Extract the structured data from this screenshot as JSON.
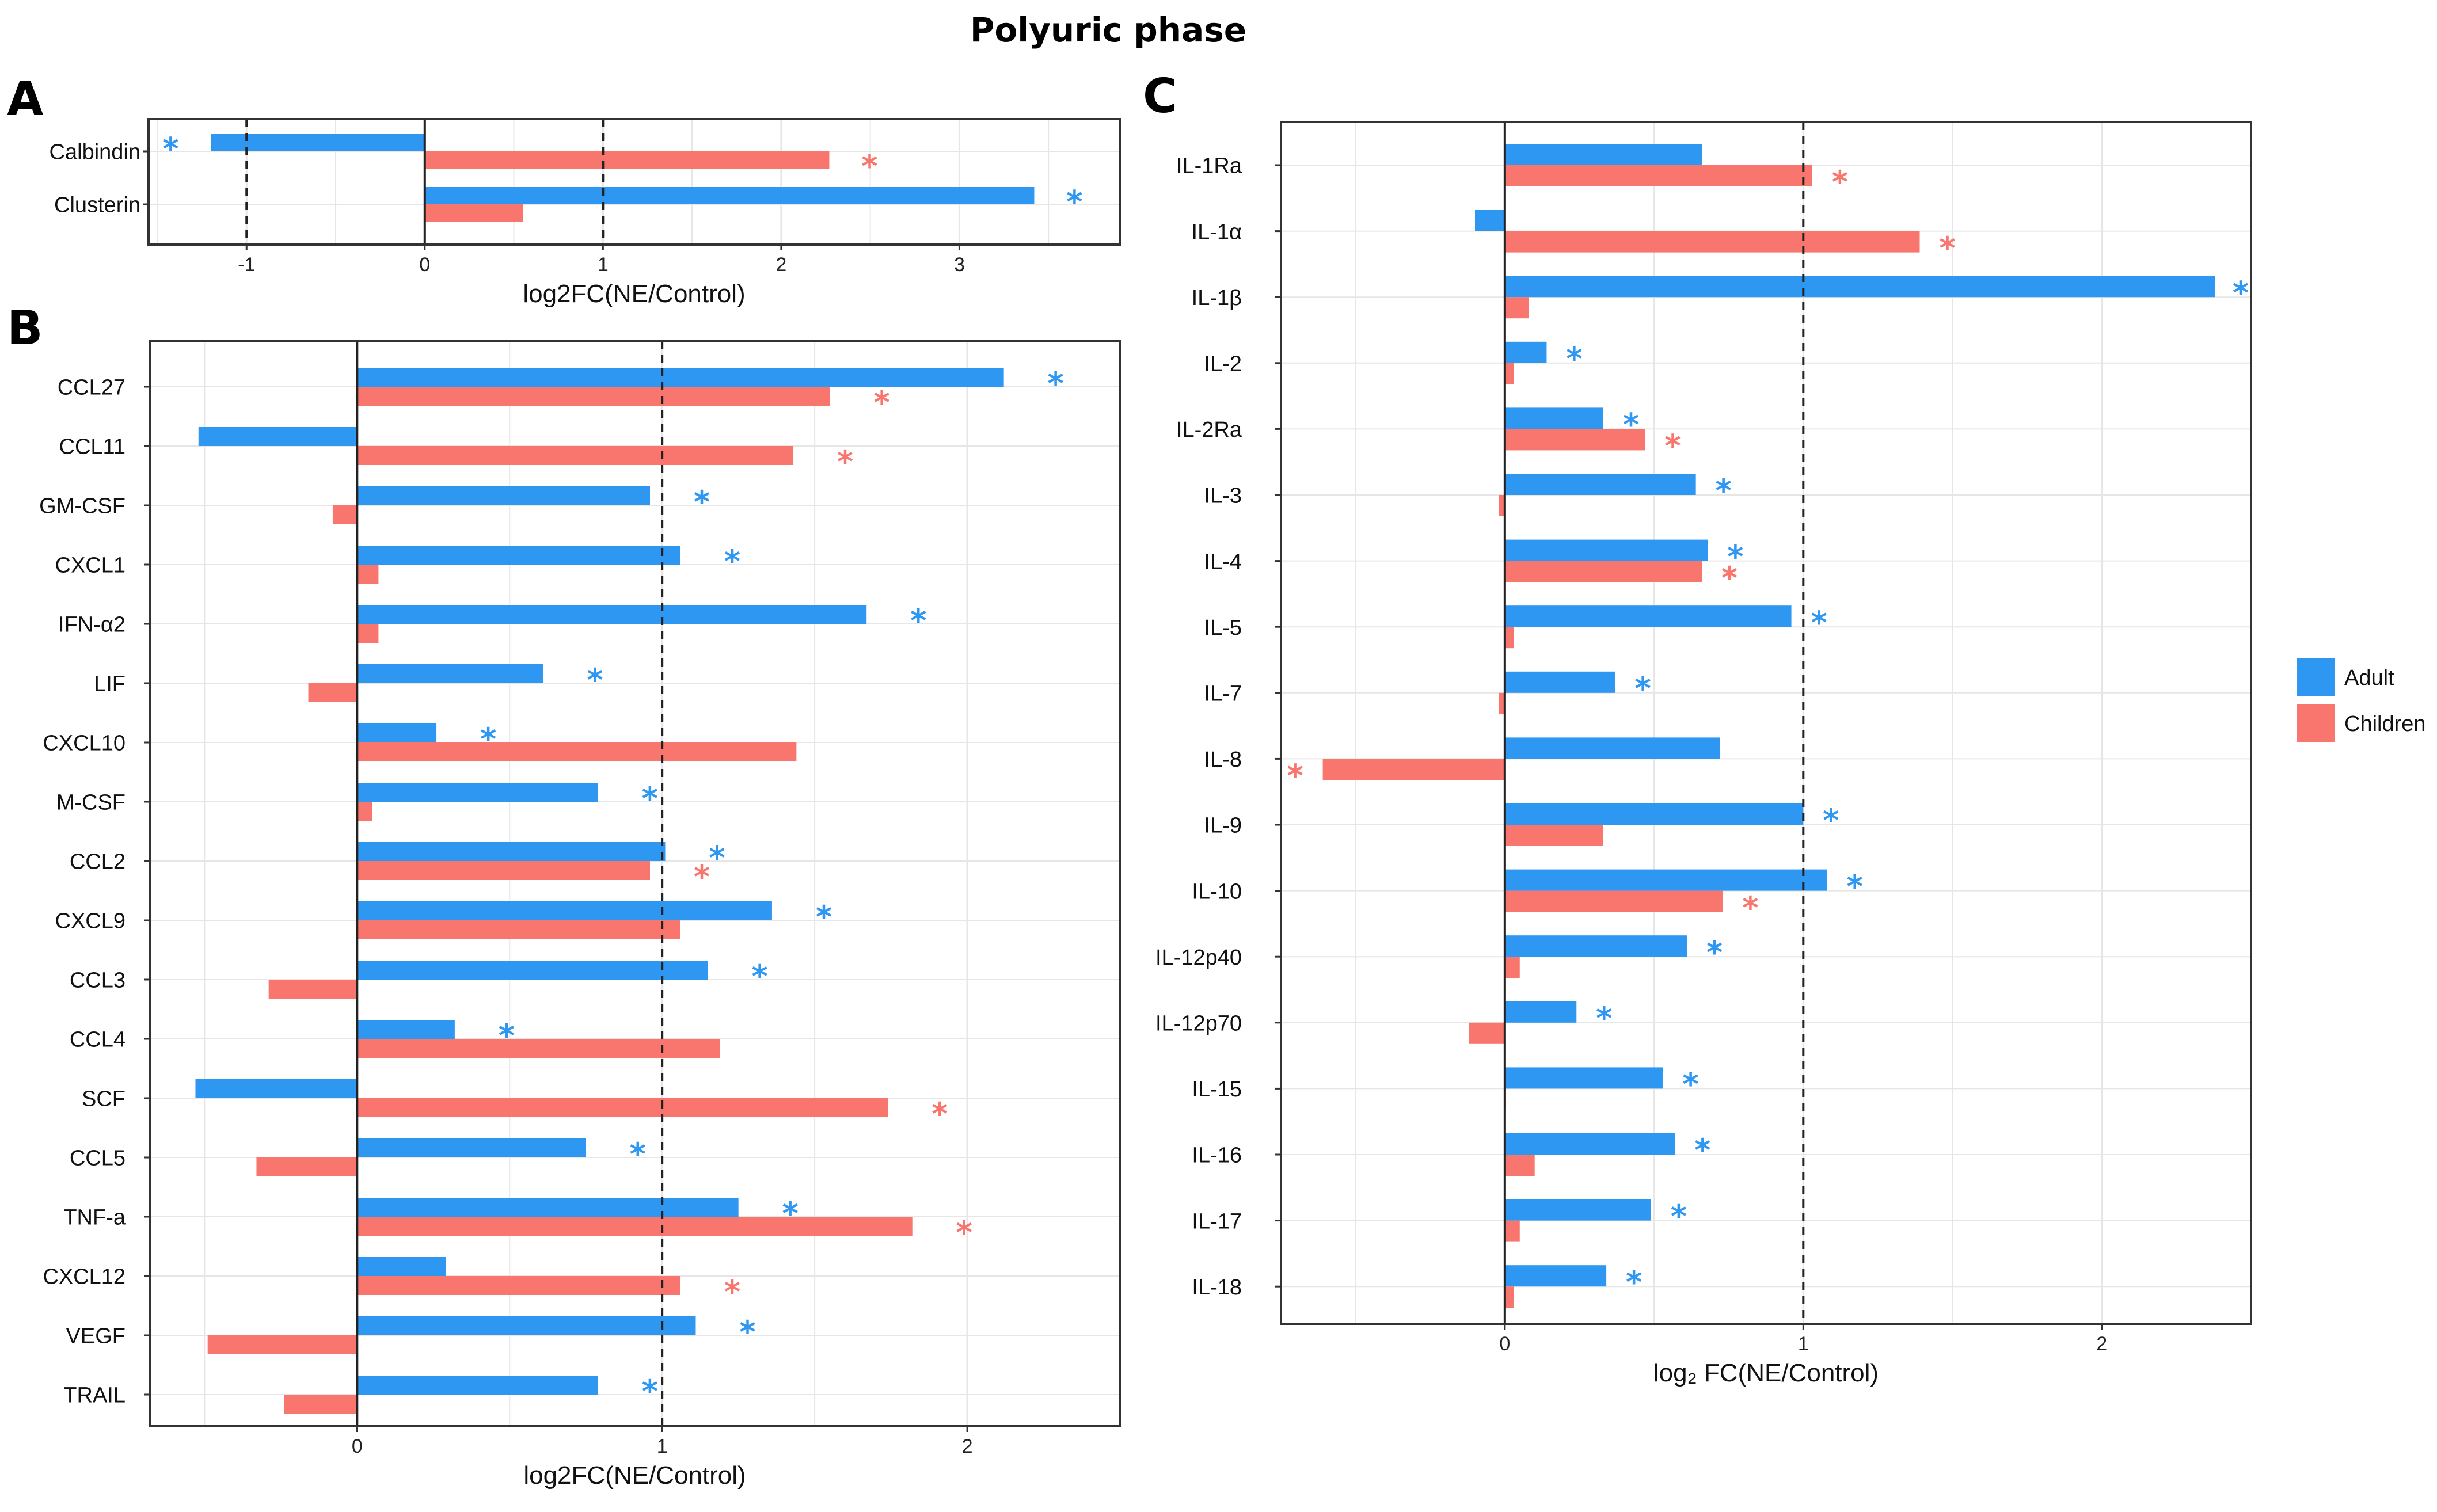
{
  "title": "Polyuric phase",
  "colors": {
    "adult": "#2E97F2",
    "children": "#F8766D",
    "grid": "#E6E6E6",
    "frame": "#333333"
  },
  "legend": {
    "adult": "Adult",
    "children": "Children"
  },
  "chart_data": [
    {
      "panel": "A",
      "type": "bar",
      "orientation": "horizontal",
      "xlabel": "log2FC(NE/Control)",
      "xlim": [
        -1.55,
        3.9
      ],
      "xticks": [
        -1,
        0,
        1,
        2,
        3
      ],
      "xtick_labels": [
        "-1",
        "0",
        "1",
        "2",
        "3"
      ],
      "ref_lines": [
        -1,
        1
      ],
      "categories": [
        "Calbindin",
        "Clusterin"
      ],
      "series": [
        {
          "name": "Adult",
          "values": [
            -1.2,
            3.42
          ],
          "significant": [
            true,
            true
          ]
        },
        {
          "name": "Children",
          "values": [
            2.27,
            0.55
          ],
          "significant": [
            true,
            false
          ]
        }
      ]
    },
    {
      "panel": "B",
      "type": "bar",
      "orientation": "horizontal",
      "xlabel": "log2FC(NE/Control)",
      "xlim": [
        -0.68,
        2.5
      ],
      "xticks": [
        0,
        1,
        2
      ],
      "xtick_labels": [
        "0",
        "1",
        "2"
      ],
      "ref_lines": [
        1
      ],
      "categories": [
        "CCL27",
        "CCL11",
        "GM-CSF",
        "CXCL1",
        "IFN-α2",
        "LIF",
        "CXCL10",
        "M-CSF",
        "CCL2",
        "CXCL9",
        "CCL3",
        "CCL4",
        "SCF",
        "CCL5",
        "TNF-a",
        "CXCL12",
        "VEGF",
        "TRAIL"
      ],
      "series": [
        {
          "name": "Adult",
          "values": [
            2.12,
            -0.52,
            0.96,
            1.06,
            1.67,
            0.61,
            0.26,
            0.79,
            1.01,
            1.36,
            1.15,
            0.32,
            -0.53,
            0.75,
            1.25,
            0.29,
            1.11,
            0.79
          ],
          "significant": [
            true,
            false,
            true,
            true,
            true,
            true,
            true,
            true,
            true,
            true,
            true,
            true,
            false,
            true,
            true,
            false,
            true,
            true
          ]
        },
        {
          "name": "Children",
          "values": [
            1.55,
            1.43,
            -0.08,
            0.07,
            0.07,
            -0.16,
            1.44,
            0.05,
            0.96,
            1.06,
            -0.29,
            1.19,
            1.74,
            -0.33,
            1.82,
            1.06,
            -0.49,
            -0.24
          ],
          "significant": [
            true,
            true,
            false,
            false,
            false,
            false,
            false,
            false,
            true,
            false,
            false,
            false,
            true,
            false,
            true,
            true,
            false,
            false
          ]
        }
      ]
    },
    {
      "panel": "C",
      "type": "bar",
      "orientation": "horizontal",
      "xlabel": "log₂ FC(NE/Control)",
      "xlim": [
        -0.75,
        2.5
      ],
      "xticks": [
        0,
        1,
        2
      ],
      "xtick_labels": [
        "0",
        "1",
        "2"
      ],
      "ref_lines": [
        1
      ],
      "categories": [
        "IL-1Ra",
        "IL-1α",
        "IL-1β",
        "IL-2",
        "IL-2Ra",
        "IL-3",
        "IL-4",
        "IL-5",
        "IL-7",
        "IL-8",
        "IL-9",
        "IL-10",
        "IL-12p40",
        "IL-12p70",
        "IL-15",
        "IL-16",
        "IL-17",
        "IL-18"
      ],
      "series": [
        {
          "name": "Adult",
          "values": [
            0.66,
            -0.1,
            2.38,
            0.14,
            0.33,
            0.64,
            0.68,
            0.96,
            0.37,
            0.72,
            1.0,
            1.08,
            0.61,
            0.24,
            0.53,
            0.57,
            0.49,
            0.34
          ],
          "significant": [
            false,
            false,
            true,
            true,
            true,
            true,
            true,
            true,
            true,
            false,
            true,
            true,
            true,
            true,
            true,
            true,
            true,
            true
          ]
        },
        {
          "name": "Children",
          "values": [
            1.03,
            1.39,
            0.08,
            0.03,
            0.47,
            -0.02,
            0.66,
            0.03,
            -0.02,
            -0.61,
            0.33,
            0.73,
            0.05,
            -0.12,
            0.0,
            0.1,
            0.05,
            0.03
          ],
          "significant": [
            true,
            true,
            false,
            false,
            true,
            false,
            true,
            false,
            false,
            true,
            false,
            true,
            false,
            false,
            false,
            false,
            false,
            false
          ]
        }
      ]
    }
  ]
}
